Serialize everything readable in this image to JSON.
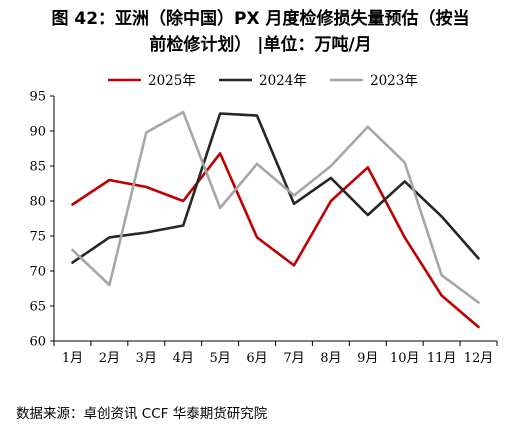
{
  "title": {
    "line1": "图 42：亚洲（除中国）PX 月度检修损失量预估（按当",
    "line2": "前检修计划）   |单位：万吨/月"
  },
  "source": "数据来源：卓创资讯  CCF  华泰期货研究院",
  "chart_data": {
    "type": "line",
    "categories": [
      "1月",
      "2月",
      "3月",
      "4月",
      "5月",
      "6月",
      "7月",
      "8月",
      "9月",
      "10月",
      "11月",
      "12月"
    ],
    "ylim": [
      60,
      95
    ],
    "yticks": [
      60,
      65,
      70,
      75,
      80,
      85,
      90,
      95
    ],
    "grid": false,
    "legend_position": "top-center",
    "series": [
      {
        "name": "2025年",
        "color": "#c00000",
        "values": [
          79.5,
          83.0,
          82.0,
          80.0,
          86.8,
          74.8,
          70.8,
          80.0,
          84.8,
          74.8,
          66.5,
          62.0
        ]
      },
      {
        "name": "2024年",
        "color": "#262626",
        "values": [
          71.2,
          74.8,
          75.5,
          76.5,
          92.5,
          92.2,
          79.6,
          83.3,
          78.0,
          82.8,
          77.8,
          71.8
        ]
      },
      {
        "name": "2023年",
        "color": "#a6a6a6",
        "values": [
          73.0,
          68.0,
          89.8,
          92.7,
          79.0,
          85.3,
          80.8,
          85.0,
          90.6,
          85.5,
          69.4,
          65.5
        ]
      }
    ]
  }
}
